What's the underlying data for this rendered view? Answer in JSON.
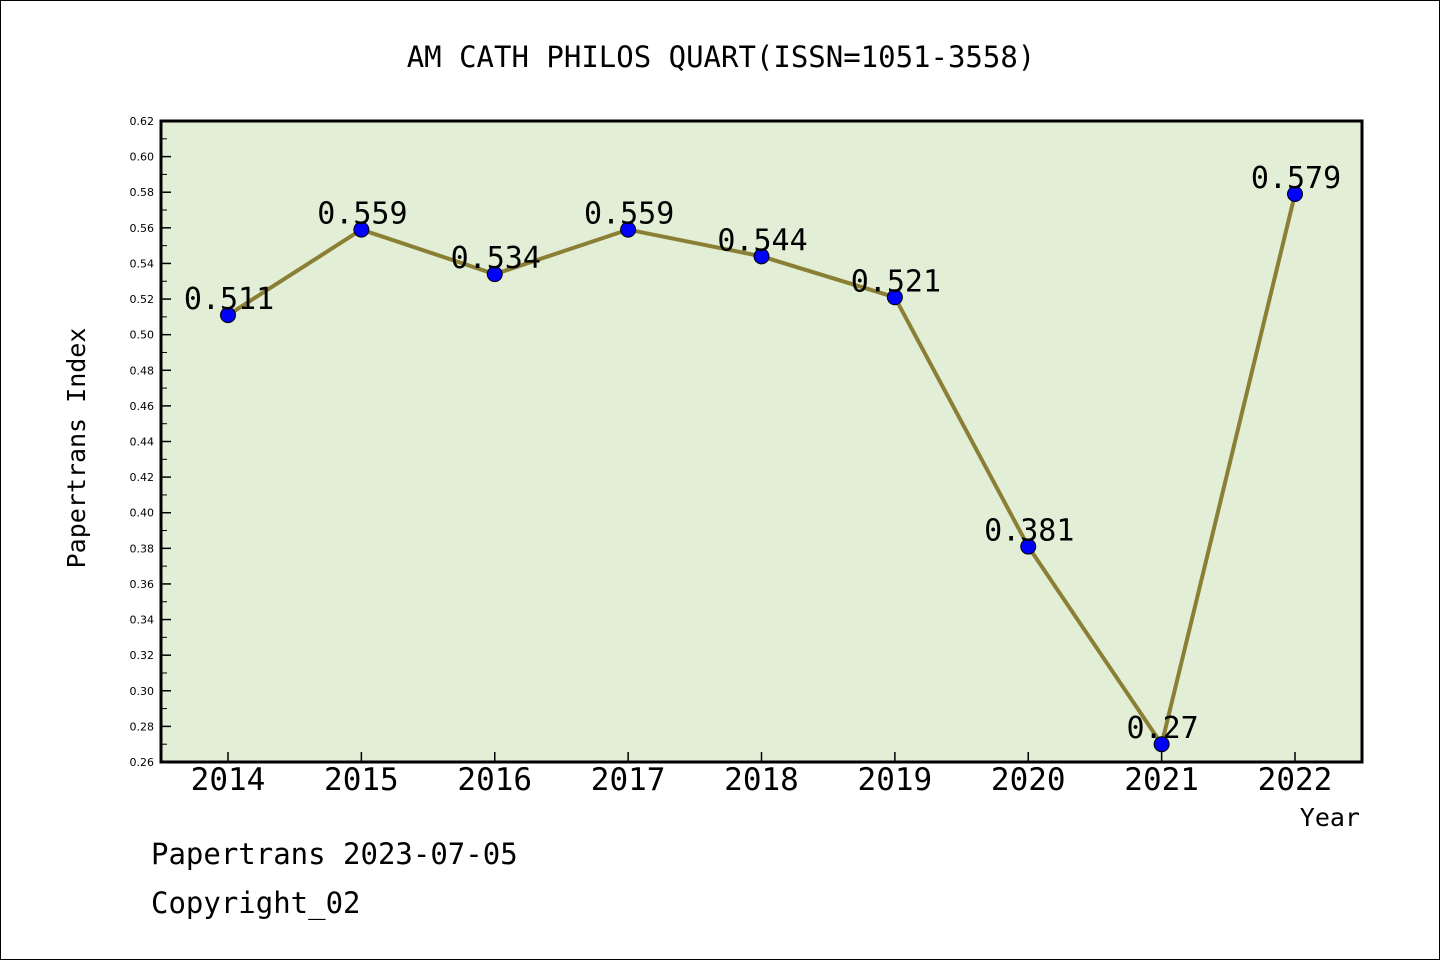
{
  "chart_data": {
    "type": "line",
    "title": "AM CATH PHILOS QUART(ISSN=1051-3558)",
    "xlabel": "Year",
    "ylabel": "Papertrans Index",
    "categories": [
      "2014",
      "2015",
      "2016",
      "2017",
      "2018",
      "2019",
      "2020",
      "2021",
      "2022"
    ],
    "series": [
      {
        "values": [
          0.511,
          0.559,
          0.534,
          0.559,
          0.544,
          0.521,
          0.381,
          0.27,
          0.579
        ]
      }
    ],
    "data_labels": [
      "0.511",
      "0.559",
      "0.534",
      "0.559",
      "0.544",
      "0.521",
      "0.381",
      "0.27",
      "0.579"
    ],
    "ylim": [
      0.26,
      0.62
    ],
    "yticks": [
      "0.26",
      "0.28",
      "0.30",
      "0.32",
      "0.34",
      "0.36",
      "0.38",
      "0.40",
      "0.42",
      "0.44",
      "0.46",
      "0.48",
      "0.50",
      "0.52",
      "0.54",
      "0.56",
      "0.58",
      "0.60",
      "0.62"
    ],
    "grid": false,
    "colors": {
      "plot_background": "#e2efd6",
      "line": "#8b7f35",
      "marker": "#0000ff"
    }
  },
  "footer": {
    "line1": "Papertrans 2023-07-05",
    "line2": "Copyright_02"
  }
}
